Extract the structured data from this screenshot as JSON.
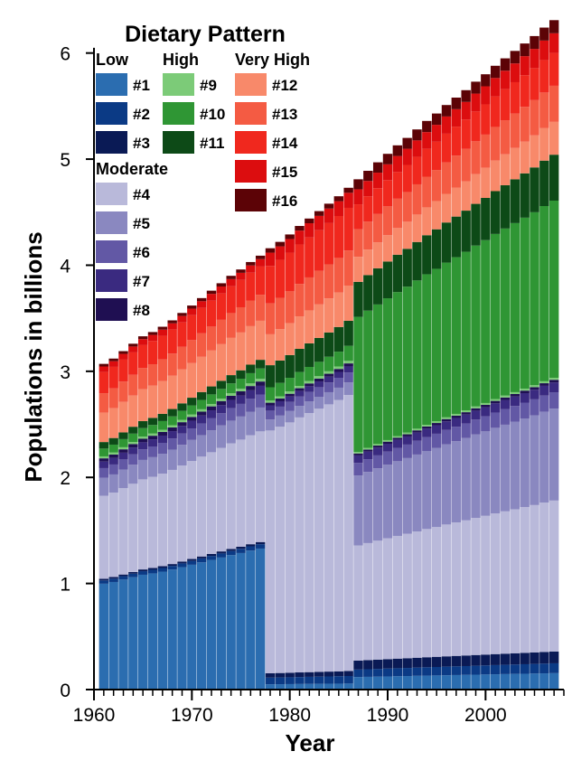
{
  "chart_data": {
    "type": "bar",
    "stacked": true,
    "title": "",
    "xlabel": "Year",
    "ylabel": "Populations in billions",
    "x_range": [
      1961,
      2007
    ],
    "xlim": [
      1960,
      2008
    ],
    "ylim": [
      0,
      6.5
    ],
    "x_ticks": [
      1960,
      1970,
      1980,
      1990,
      2000
    ],
    "y_ticks": [
      0,
      1,
      2,
      3,
      4,
      5,
      6
    ],
    "legend": {
      "title": "Dietary Pattern",
      "placement": "top-left",
      "groups": [
        {
          "label": "Low",
          "series": [
            "#1",
            "#2",
            "#3"
          ]
        },
        {
          "label": "High",
          "series": [
            "#9",
            "#10",
            "#11"
          ]
        },
        {
          "label": "Very High",
          "series": [
            "#12",
            "#13",
            "#14",
            "#15",
            "#16"
          ]
        },
        {
          "label": "Moderate",
          "series": [
            "#4",
            "#5",
            "#6",
            "#7",
            "#8"
          ]
        }
      ]
    },
    "series": [
      {
        "name": "#1",
        "color": "#2b6db0"
      },
      {
        "name": "#2",
        "color": "#0b3a85"
      },
      {
        "name": "#3",
        "color": "#0a1a55"
      },
      {
        "name": "#4",
        "color": "#b9b9da"
      },
      {
        "name": "#5",
        "color": "#8a88c0"
      },
      {
        "name": "#6",
        "color": "#6258a5"
      },
      {
        "name": "#7",
        "color": "#3a2a80"
      },
      {
        "name": "#8",
        "color": "#1f0f52"
      },
      {
        "name": "#9",
        "color": "#7ccb78"
      },
      {
        "name": "#10",
        "color": "#2f9634"
      },
      {
        "name": "#11",
        "color": "#0d4a17"
      },
      {
        "name": "#12",
        "color": "#f8896a"
      },
      {
        "name": "#13",
        "color": "#f45b43"
      },
      {
        "name": "#14",
        "color": "#f0281e"
      },
      {
        "name": "#15",
        "color": "#dc0d0f"
      },
      {
        "name": "#16",
        "color": "#5c0306"
      }
    ],
    "totals": [
      3.07,
      3.12,
      3.19,
      3.26,
      3.33,
      3.37,
      3.42,
      3.48,
      3.55,
      3.62,
      3.69,
      3.76,
      3.83,
      3.9,
      3.96,
      4.03,
      4.09,
      4.16,
      4.22,
      4.29,
      4.37,
      4.44,
      4.51,
      4.58,
      4.65,
      4.73,
      4.81,
      4.89,
      4.97,
      5.05,
      5.13,
      5.2,
      5.28,
      5.36,
      5.43,
      5.51,
      5.58,
      5.65,
      5.73,
      5.8,
      5.88,
      5.95,
      6.02,
      6.09,
      6.16,
      6.24,
      6.31
    ],
    "period_mix": [
      {
        "from": 1961,
        "to": 1977,
        "shares": {
          "#1": 0.325,
          "#2": 0.01,
          "#3": 0.005,
          "#4": 0.255,
          "#5": 0.055,
          "#6": 0.03,
          "#7": 0.02,
          "#8": 0.01,
          "#9": 0.006,
          "#10": 0.024,
          "#11": 0.02,
          "#12": 0.09,
          "#13": 0.06,
          "#14": 0.065,
          "#15": 0.017,
          "#16": 0.008
        }
      },
      {
        "from": 1978,
        "to": 1986,
        "shares": {
          "#1": 0.012,
          "#2": 0.015,
          "#3": 0.01,
          "#4": 0.55,
          "#5": 0.025,
          "#6": 0.02,
          "#7": 0.012,
          "#8": 0.006,
          "#9": 0.005,
          "#10": 0.03,
          "#11": 0.05,
          "#12": 0.07,
          "#13": 0.07,
          "#14": 0.085,
          "#15": 0.03,
          "#16": 0.01
        }
      },
      {
        "from": 1987,
        "to": 2007,
        "shares": {
          "#1": 0.025,
          "#2": 0.015,
          "#3": 0.018,
          "#4": 0.23,
          "#5": 0.14,
          "#6": 0.025,
          "#7": 0.015,
          "#8": 0.004,
          "#9": 0.003,
          "#10": 0.27,
          "#11": 0.07,
          "#12": 0.05,
          "#13": 0.055,
          "#14": 0.05,
          "#15": 0.03,
          "#16": 0.02
        }
      }
    ]
  }
}
